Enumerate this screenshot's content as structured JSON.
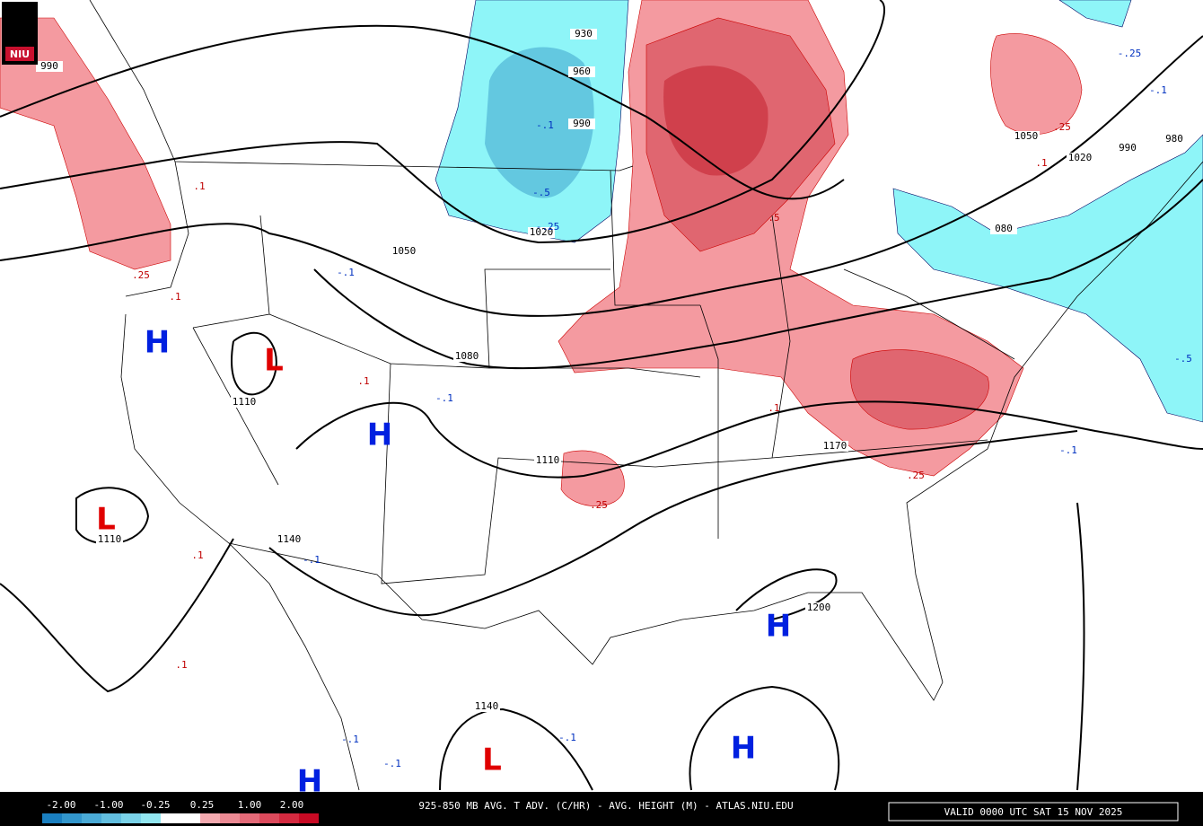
{
  "logo": "NIU",
  "footer": {
    "title": "925-850 MB AVG. T ADV. (C/HR) - AVG. HEIGHT (M) - ATLAS.NIU.EDU",
    "valid": "VALID 0000 UTC SAT 15 NOV 2025",
    "legend_labels": [
      "-2.00",
      "-1.00",
      "-0.25",
      "0.25",
      "1.00",
      "2.00"
    ]
  },
  "pressure_centers": [
    "H",
    "L",
    "H",
    "L",
    "H",
    "H",
    "L",
    "H"
  ],
  "height_labels": [
    "990",
    "930",
    "960",
    "990",
    "1020",
    "1050",
    "1080",
    "1110",
    "1110",
    "1110",
    "1140",
    "1170",
    "1200",
    "1140",
    "1050",
    "1020",
    "980",
    "080",
    "990"
  ],
  "advection_labels": [
    "-.1",
    "-.5",
    "-.25",
    ".1",
    ".25",
    ".1",
    ".1",
    "-.1",
    "-.1",
    ".5",
    ".1",
    ".25",
    ".25",
    ".1",
    "-.1",
    ".1",
    "-.1",
    "-.5",
    "-.25",
    "-.1",
    ".25",
    ".1",
    "-.1",
    "-.1",
    "-.1"
  ]
}
